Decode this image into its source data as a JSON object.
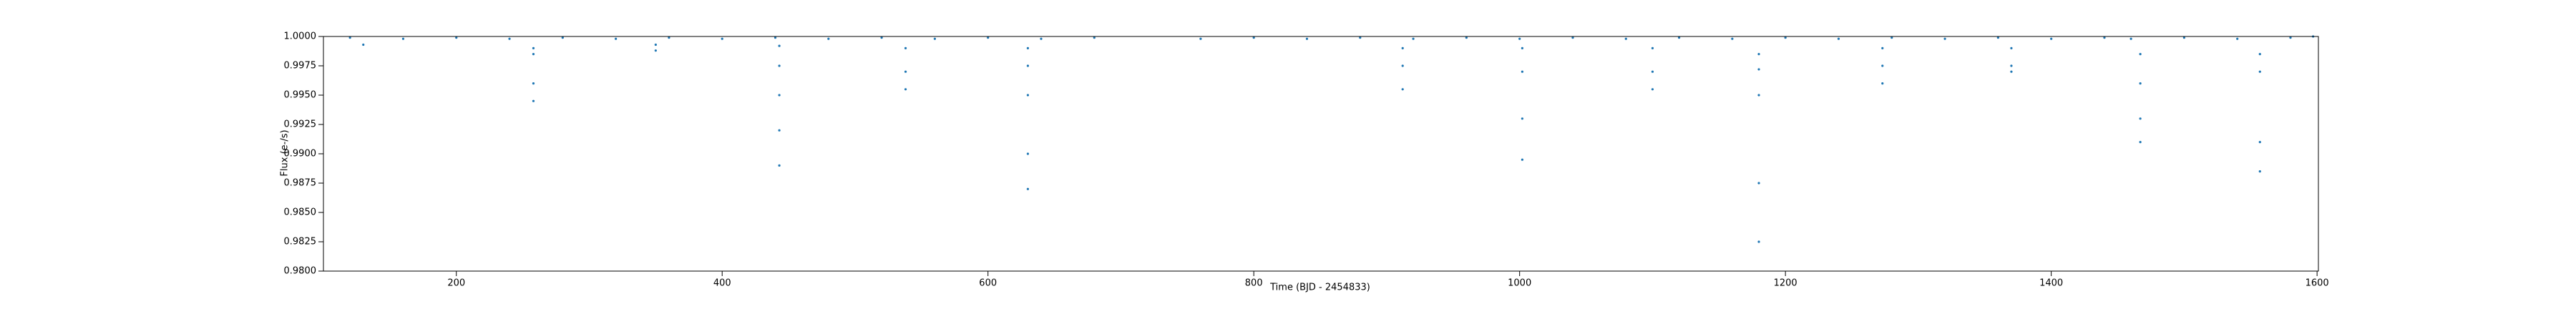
{
  "chart_data": {
    "type": "scatter",
    "x_label": "Time (BJD - 2454833)",
    "y_label": "Flux (e-/s)",
    "xlim": [
      100,
      1601
    ],
    "ylim": [
      0.98,
      1.0
    ],
    "xticks": [
      200,
      400,
      600,
      800,
      1000,
      1200,
      1400,
      1600
    ],
    "yticks": [
      {
        "value": 0.98,
        "label": "0.9800"
      },
      {
        "value": 0.9825,
        "label": "0.9825"
      },
      {
        "value": 0.985,
        "label": "0.9850"
      },
      {
        "value": 0.9875,
        "label": "0.9875"
      },
      {
        "value": 0.99,
        "label": "0.9900"
      },
      {
        "value": 0.9925,
        "label": "0.9925"
      },
      {
        "value": 0.995,
        "label": "0.9950"
      },
      {
        "value": 0.9975,
        "label": "0.9975"
      },
      {
        "value": 1.0,
        "label": "1.0000"
      }
    ],
    "grid": false,
    "series": [
      {
        "color": "#1f77b4",
        "x": [
          120,
          160,
          200,
          240,
          280,
          320,
          360,
          400,
          440,
          480,
          520,
          560,
          600,
          640,
          680,
          760,
          800,
          840,
          880,
          920,
          960,
          1000,
          1040,
          1080,
          1120,
          1160,
          1200,
          1240,
          1280,
          1320,
          1360,
          1400,
          1440,
          1460,
          1500,
          1540,
          1580,
          130,
          258,
          258,
          258,
          258,
          350,
          350,
          443,
          443,
          443,
          443,
          443,
          538,
          538,
          538,
          630,
          630,
          630,
          630,
          630,
          912,
          912,
          912,
          1002,
          1002,
          1002,
          1002,
          1100,
          1100,
          1100,
          1180,
          1180,
          1180,
          1180,
          1180,
          1273,
          1273,
          1273,
          1370,
          1370,
          1370,
          1467,
          1467,
          1467,
          1467,
          1557,
          1557,
          1557,
          1557,
          1597
        ],
        "values": [
          0.9999,
          0.9998,
          0.9999,
          0.9998,
          0.9999,
          0.9998,
          0.9999,
          0.9998,
          0.9999,
          0.9998,
          0.9999,
          0.9998,
          0.9999,
          0.9998,
          0.9999,
          0.9998,
          0.9999,
          0.9998,
          0.9999,
          0.9998,
          0.9999,
          0.9998,
          0.9999,
          0.9998,
          0.9999,
          0.9998,
          0.9999,
          0.9998,
          0.9999,
          0.9998,
          0.9999,
          0.9998,
          0.9999,
          0.9998,
          0.9999,
          0.9998,
          0.9999,
          0.9993,
          0.999,
          0.9985,
          0.996,
          0.9945,
          0.9993,
          0.9988,
          0.9992,
          0.9975,
          0.995,
          0.992,
          0.989,
          0.999,
          0.997,
          0.9955,
          0.999,
          0.9975,
          0.995,
          0.99,
          0.987,
          0.999,
          0.9975,
          0.9955,
          0.999,
          0.997,
          0.993,
          0.9895,
          0.999,
          0.997,
          0.9955,
          0.9985,
          0.9972,
          0.995,
          0.9875,
          0.9825,
          0.999,
          0.9975,
          0.996,
          0.999,
          0.9975,
          0.997,
          0.9985,
          0.996,
          0.993,
          0.991,
          0.9985,
          0.997,
          0.991,
          0.9885,
          1.0
        ]
      }
    ]
  }
}
